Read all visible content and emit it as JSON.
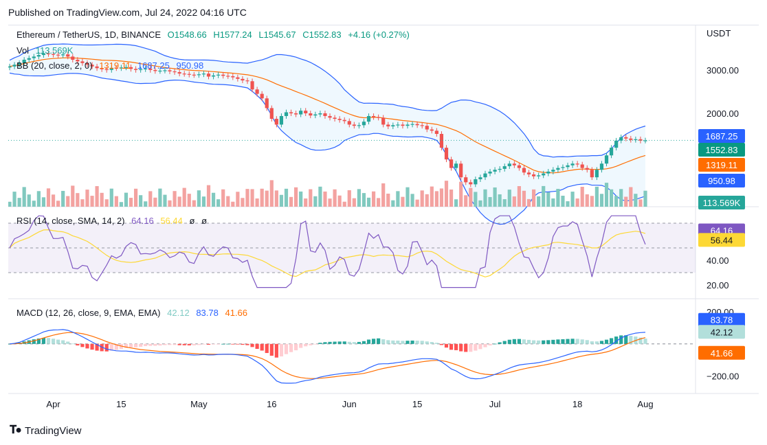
{
  "header": {
    "published": "Published on TradingView.com, Jul 24, 2022 04:16 UTC"
  },
  "footer": {
    "brand": "TradingView",
    "logo_icon": "tradingview-logo-icon"
  },
  "symbol": {
    "name": "Ethereum / TetherUS, 1D, BINANCE",
    "open": "O1548.66",
    "high": "H1577.24",
    "low": "L1545.67",
    "close": "C1552.83",
    "change": "+4.16 (+0.27%)"
  },
  "legends": {
    "vol": {
      "label": "Vol",
      "value": "113.569K"
    },
    "bb": {
      "label": "BB (20, close, 2, 0)",
      "basis": "1319.11",
      "upper": "1687.25",
      "lower": "950.98"
    },
    "rsi": {
      "label": "RSI (14, close, SMA, 14, 2)",
      "rsi": "64.16",
      "sma": "56.44",
      "extra1": "ø",
      "extra2": "ø"
    },
    "macd": {
      "label": "MACD (12, 26, close, 9, EMA, EMA)",
      "hist": "42.12",
      "macd": "83.78",
      "signal": "41.66"
    }
  },
  "colors": {
    "up": "#26a69a",
    "down": "#ef5350",
    "bb_upper": "#2962ff",
    "bb_basis": "#ff6d00",
    "bb_fill": "#2196f3",
    "rsi": "#7e57c2",
    "rsi_sma": "#fdd835",
    "macd": "#2962ff",
    "signal": "#ff6d00",
    "vol_up": "#81c9bf",
    "vol_down": "#f3a2a0"
  },
  "axis": {
    "price_unit": "USDT",
    "price_ticks": [
      "3000.00",
      "2000.00"
    ],
    "rsi_ticks": [
      "40.00",
      "20.00"
    ],
    "macd_ticks": [
      "200.00",
      "−200.00"
    ],
    "date_labels": [
      "Apr",
      "15",
      "May",
      "16",
      "Jun",
      "15",
      "Jul",
      "18",
      "Aug"
    ]
  },
  "price_tags": {
    "upper": "1687.25",
    "last": "1552.83",
    "basis": "1319.11",
    "lower": "950.98",
    "volume": "113.569K",
    "rsi": "64.16",
    "rsi_sma": "56.44",
    "macd": "83.78",
    "hist": "42.12",
    "signal": "41.66"
  },
  "chart_data": {
    "type": "candlestick",
    "title": "Ethereum / TetherUS, 1D, BINANCE",
    "price_scale": "log",
    "date_range": [
      "2022-03-23",
      "2022-07-24"
    ],
    "price_ylim": [
      1000,
      4000
    ],
    "closes_approx": [
      3100,
      3150,
      3200,
      3300,
      3350,
      3400,
      3450,
      3500,
      3480,
      3460,
      3440,
      3470,
      3400,
      3300,
      3250,
      3200,
      3150,
      3100,
      3050,
      3020,
      3000,
      3060,
      3050,
      3070,
      3080,
      3030,
      3000,
      3020,
      3040,
      3000,
      2970,
      2980,
      2990,
      2960,
      2940,
      2900,
      2890,
      2870,
      2860,
      2880,
      2900,
      2820,
      2850,
      2870,
      2840,
      2830,
      2800,
      2760,
      2720,
      2700,
      2500,
      2400,
      2300,
      2100,
      1900,
      1800,
      1950,
      2020,
      2000,
      1980,
      2050,
      2000,
      1960,
      1980,
      2000,
      1950,
      1920,
      1900,
      1880,
      1860,
      1800,
      1780,
      1790,
      1850,
      1950,
      1930,
      1920,
      1800,
      1770,
      1790,
      1800,
      1780,
      1800,
      1810,
      1790,
      1780,
      1720,
      1700,
      1650,
      1450,
      1300,
      1200,
      1250,
      1100,
      1050,
      1030,
      1080,
      1100,
      1140,
      1160,
      1180,
      1190,
      1220,
      1250,
      1230,
      1200,
      1150,
      1130,
      1110,
      1120,
      1140,
      1160,
      1180,
      1200,
      1210,
      1230,
      1250,
      1240,
      1200,
      1180,
      1100,
      1180,
      1250,
      1350,
      1450,
      1550,
      1600,
      1580,
      1560,
      1570,
      1549,
      1553
    ],
    "indicators": {
      "bollinger": {
        "period": 20,
        "upper_last": 1687.25,
        "basis_last": 1319.11,
        "lower_last": 950.98
      },
      "rsi": {
        "period": 14,
        "last": 64.16,
        "sma_last": 56.44,
        "ylim": [
          10,
          80
        ],
        "bands": [
          30,
          50,
          70
        ]
      },
      "macd": {
        "macd_last": 83.78,
        "signal_last": 41.66,
        "hist_last": 42.12,
        "ylim": [
          -300,
          230
        ]
      }
    },
    "volume_last": "113.569K"
  }
}
